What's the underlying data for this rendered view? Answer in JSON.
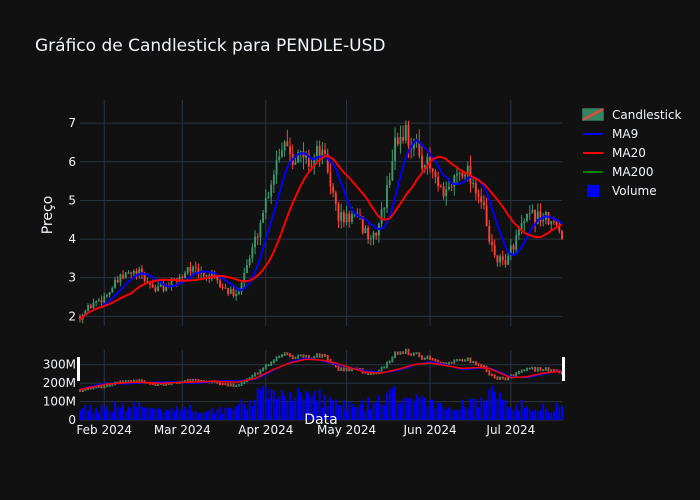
{
  "chart_data": {
    "type": "candlestick",
    "title": "Gráfico de Candlestick para PENDLE-USD",
    "xlabel": "Data",
    "ylabel": "Preço",
    "ylim": [
      1.75,
      7.6
    ],
    "ytick_values": [
      2,
      3,
      4,
      5,
      6,
      7
    ],
    "volume_ytick_labels": [
      "0",
      "100M",
      "200M",
      "300M"
    ],
    "volume_ylim": [
      0,
      380
    ],
    "x_range": [
      0,
      179
    ],
    "x_ticks": [
      {
        "label": "Feb 2024",
        "day": 9
      },
      {
        "label": "Mar 2024",
        "day": 38
      },
      {
        "label": "Apr 2024",
        "day": 69
      },
      {
        "label": "May 2024",
        "day": 99
      },
      {
        "label": "Jun 2024",
        "day": 130
      },
      {
        "label": "Jul 2024",
        "day": 160
      }
    ],
    "colors": {
      "increasing": "#3d9970",
      "decreasing": "#ff4136",
      "ma9": "#0000ff",
      "ma20": "#ff0000",
      "ma200": "#008000",
      "volume": "#0000ff"
    },
    "legend": [
      {
        "name": "Candlestick",
        "kind": "candle"
      },
      {
        "name": "MA9",
        "kind": "line",
        "color": "#0000ff"
      },
      {
        "name": "MA20",
        "kind": "line",
        "color": "#ff0000"
      },
      {
        "name": "MA200",
        "kind": "line",
        "color": "#008000"
      },
      {
        "name": "Volume",
        "kind": "bar",
        "color": "#0000ff"
      }
    ],
    "legend_position": "top-right",
    "price_anchors": [
      [
        0,
        2.0
      ],
      [
        5,
        2.35
      ],
      [
        9,
        2.5
      ],
      [
        14,
        2.9
      ],
      [
        18,
        3.1
      ],
      [
        22,
        3.1
      ],
      [
        25,
        2.9
      ],
      [
        28,
        2.7
      ],
      [
        33,
        2.8
      ],
      [
        38,
        3.05
      ],
      [
        40,
        3.3
      ],
      [
        44,
        3.1
      ],
      [
        48,
        3.05
      ],
      [
        52,
        2.8
      ],
      [
        56,
        2.6
      ],
      [
        58,
        2.5
      ],
      [
        60,
        3.0
      ],
      [
        63,
        3.5
      ],
      [
        66,
        4.2
      ],
      [
        69,
        5.0
      ],
      [
        72,
        5.8
      ],
      [
        74,
        6.3
      ],
      [
        76,
        6.6
      ],
      [
        79,
        6.2
      ],
      [
        83,
        6.1
      ],
      [
        86,
        6.0
      ],
      [
        89,
        6.3
      ],
      [
        92,
        5.8
      ],
      [
        94,
        5.1
      ],
      [
        96,
        4.6
      ],
      [
        98,
        4.5
      ],
      [
        101,
        4.6
      ],
      [
        104,
        4.4
      ],
      [
        107,
        4.1
      ],
      [
        109,
        4.0
      ],
      [
        111,
        4.4
      ],
      [
        114,
        5.2
      ],
      [
        116,
        6.2
      ],
      [
        118,
        6.6
      ],
      [
        121,
        6.8
      ],
      [
        123,
        6.5
      ],
      [
        126,
        6.2
      ],
      [
        129,
        5.9
      ],
      [
        131,
        5.7
      ],
      [
        133,
        5.3
      ],
      [
        135,
        5.0
      ],
      [
        137,
        5.3
      ],
      [
        140,
        5.7
      ],
      [
        143,
        5.9
      ],
      [
        145,
        5.6
      ],
      [
        148,
        5.2
      ],
      [
        150,
        4.7
      ],
      [
        152,
        3.9
      ],
      [
        154,
        3.6
      ],
      [
        156,
        3.4
      ],
      [
        159,
        3.5
      ],
      [
        161,
        3.9
      ],
      [
        164,
        4.3
      ],
      [
        167,
        4.55
      ],
      [
        170,
        4.6
      ],
      [
        173,
        4.5
      ],
      [
        176,
        4.35
      ],
      [
        179,
        4.15
      ]
    ],
    "volume_anchors": [
      [
        0,
        65
      ],
      [
        20,
        75
      ],
      [
        40,
        60
      ],
      [
        55,
        55
      ],
      [
        62,
        100
      ],
      [
        68,
        140
      ],
      [
        75,
        150
      ],
      [
        80,
        155
      ],
      [
        90,
        120
      ],
      [
        100,
        80
      ],
      [
        110,
        95
      ],
      [
        118,
        140
      ],
      [
        125,
        110
      ],
      [
        135,
        75
      ],
      [
        145,
        90
      ],
      [
        152,
        150
      ],
      [
        158,
        100
      ],
      [
        165,
        75
      ],
      [
        179,
        70
      ]
    ],
    "ma_vol_anchors": [
      [
        0,
        165
      ],
      [
        10,
        195
      ],
      [
        20,
        205
      ],
      [
        30,
        200
      ],
      [
        40,
        205
      ],
      [
        50,
        210
      ],
      [
        58,
        205
      ],
      [
        65,
        225
      ],
      [
        72,
        275
      ],
      [
        78,
        310
      ],
      [
        84,
        330
      ],
      [
        90,
        325
      ],
      [
        96,
        305
      ],
      [
        100,
        285
      ],
      [
        106,
        260
      ],
      [
        112,
        255
      ],
      [
        118,
        275
      ],
      [
        124,
        300
      ],
      [
        130,
        310
      ],
      [
        136,
        295
      ],
      [
        142,
        280
      ],
      [
        148,
        285
      ],
      [
        152,
        280
      ],
      [
        156,
        255
      ],
      [
        160,
        230
      ],
      [
        166,
        235
      ],
      [
        172,
        255
      ],
      [
        179,
        265
      ]
    ]
  }
}
